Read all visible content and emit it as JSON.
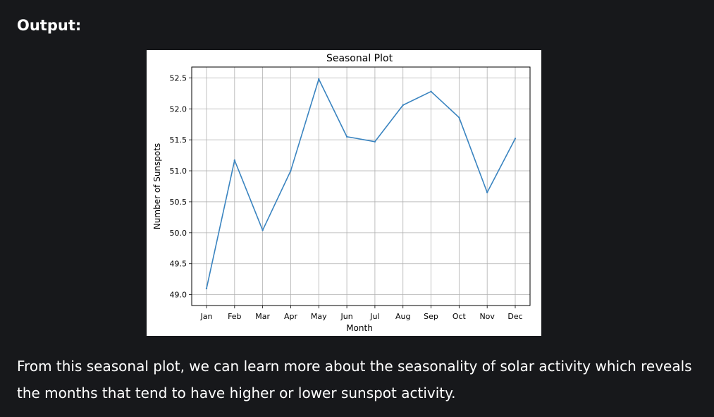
{
  "heading": "Output:",
  "paragraph": "From this seasonal plot, we can learn more about the seasonality of solar activity which reveals the months that tend to have higher or lower sunspot activity.",
  "colors": {
    "background": "#17181b",
    "text": "#ffffff",
    "line": "#3a84c0",
    "grid": "#b0b0b0"
  },
  "chart_data": {
    "type": "line",
    "title": "Seasonal Plot",
    "xlabel": "Month",
    "ylabel": "Number of Sunspots",
    "categories": [
      "Jan",
      "Feb",
      "Mar",
      "Apr",
      "May",
      "Jun",
      "Jul",
      "Aug",
      "Sep",
      "Oct",
      "Nov",
      "Dec"
    ],
    "values": [
      49.1,
      51.17,
      50.04,
      51.0,
      52.48,
      51.55,
      51.47,
      52.06,
      52.28,
      51.86,
      50.65,
      51.52
    ],
    "ylim": [
      49.0,
      52.5
    ],
    "yticks": [
      "49.0",
      "49.5",
      "50.0",
      "50.5",
      "51.0",
      "51.5",
      "52.0",
      "52.5"
    ],
    "grid": true
  }
}
